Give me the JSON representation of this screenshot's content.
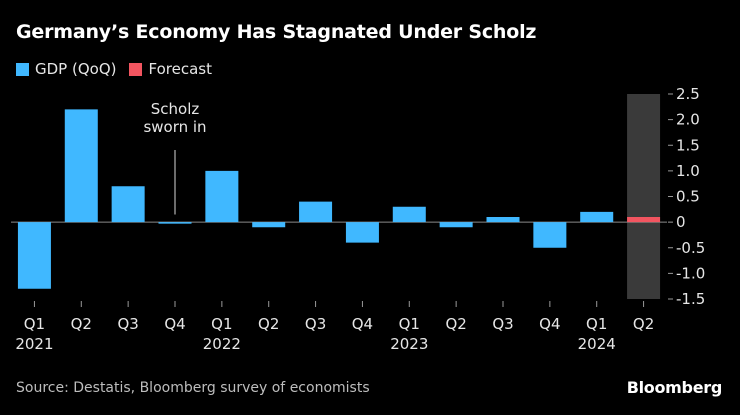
{
  "header": {
    "title": "Germany’s Economy Has Stagnated Under Scholz"
  },
  "legend": {
    "items": [
      {
        "label": "GDP (QoQ)",
        "color": "#40B8FF"
      },
      {
        "label": "Forecast",
        "color": "#F25560"
      }
    ]
  },
  "chart_data": {
    "type": "bar",
    "title": "Germany’s Economy Has Stagnated Under Scholz",
    "categories": [
      "Q1",
      "Q2",
      "Q3",
      "Q4",
      "Q1",
      "Q2",
      "Q3",
      "Q4",
      "Q1",
      "Q2",
      "Q3",
      "Q4",
      "Q1",
      "Q2"
    ],
    "years": [
      {
        "label": "2021",
        "index": 0
      },
      {
        "label": "2022",
        "index": 4
      },
      {
        "label": "2023",
        "index": 8
      },
      {
        "label": "2024",
        "index": 12
      }
    ],
    "series": [
      {
        "name": "GDP (QoQ)",
        "color": "#40B8FF",
        "values": [
          -1.3,
          2.2,
          0.7,
          -0.03,
          1.0,
          -0.1,
          0.4,
          -0.4,
          0.3,
          -0.1,
          0.1,
          -0.5,
          0.2,
          null
        ]
      },
      {
        "name": "Forecast",
        "color": "#F25560",
        "values": [
          null,
          null,
          null,
          null,
          null,
          null,
          null,
          null,
          null,
          null,
          null,
          null,
          null,
          0.1
        ]
      }
    ],
    "forecast_shade_index": 13,
    "ylim": [
      -1.5,
      2.5
    ],
    "yticks": [
      2.5,
      2.0,
      1.5,
      1.0,
      0.5,
      0,
      -0.5,
      -1.0,
      -1.5
    ],
    "ytick_labels": [
      "2.5",
      "2.0",
      "1.5",
      "1.0",
      "0.5",
      "0",
      "-0.5",
      "-1.0",
      "-1.5"
    ],
    "y_axis_side": "right",
    "annotation": {
      "lines": [
        "Scholz",
        "sworn in"
      ],
      "index": 3,
      "value": 0.15
    }
  },
  "footer": {
    "source": "Source: Destatis, Bloomberg survey of economists",
    "brand": "Bloomberg"
  }
}
